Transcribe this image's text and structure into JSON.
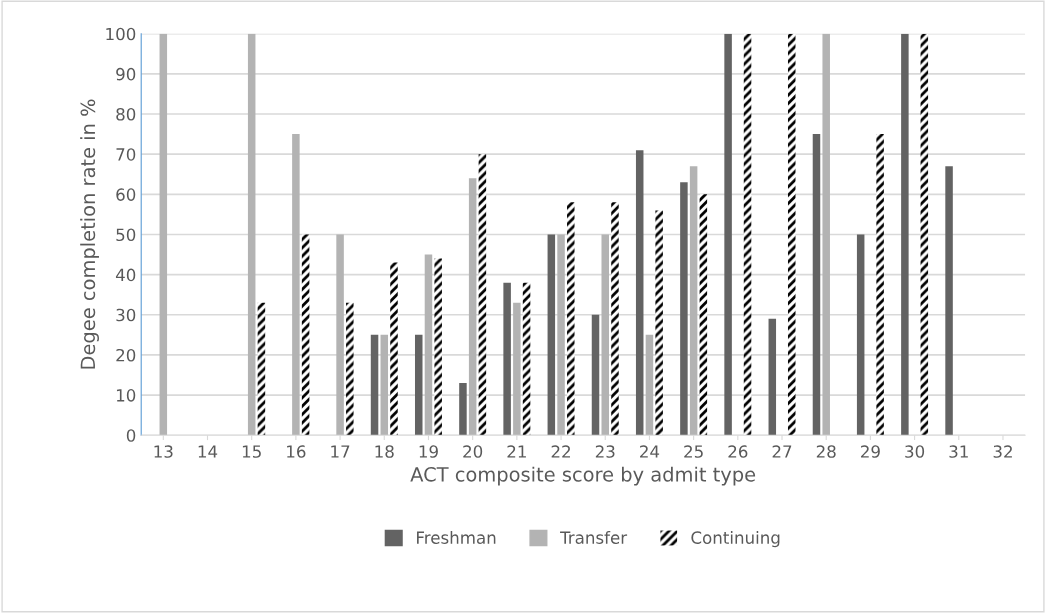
{
  "chart_data": {
    "type": "bar",
    "xlabel": "ACT composite score by admit type",
    "ylabel": "Degee completion rate in %",
    "categories": [
      "13",
      "14",
      "15",
      "16",
      "17",
      "18",
      "19",
      "20",
      "21",
      "22",
      "23",
      "24",
      "25",
      "26",
      "27",
      "28",
      "29",
      "30",
      "31",
      "32"
    ],
    "series": [
      {
        "name": "Freshman",
        "color": "#636363",
        "values": [
          0,
          0,
          0,
          0,
          0,
          25,
          25,
          13,
          38,
          50,
          30,
          71,
          63,
          100,
          29,
          75,
          50,
          100,
          67,
          0
        ]
      },
      {
        "name": "Transfer",
        "color": "#b3b3b3",
        "values": [
          100,
          0,
          100,
          75,
          50,
          25,
          45,
          64,
          33,
          50,
          50,
          25,
          67,
          0,
          0,
          100,
          0,
          0,
          0,
          0
        ]
      },
      {
        "name": "Continuing",
        "color": "#000000",
        "values": [
          0,
          0,
          33,
          50,
          33,
          43,
          44,
          70,
          38,
          58,
          58,
          56,
          60,
          100,
          100,
          0,
          75,
          100,
          0,
          0
        ]
      }
    ],
    "ylim": [
      0,
      100
    ],
    "yticks": [
      0,
      10,
      20,
      30,
      40,
      50,
      60,
      70,
      80,
      90,
      100
    ],
    "grid": "y",
    "legend": "bottom"
  }
}
